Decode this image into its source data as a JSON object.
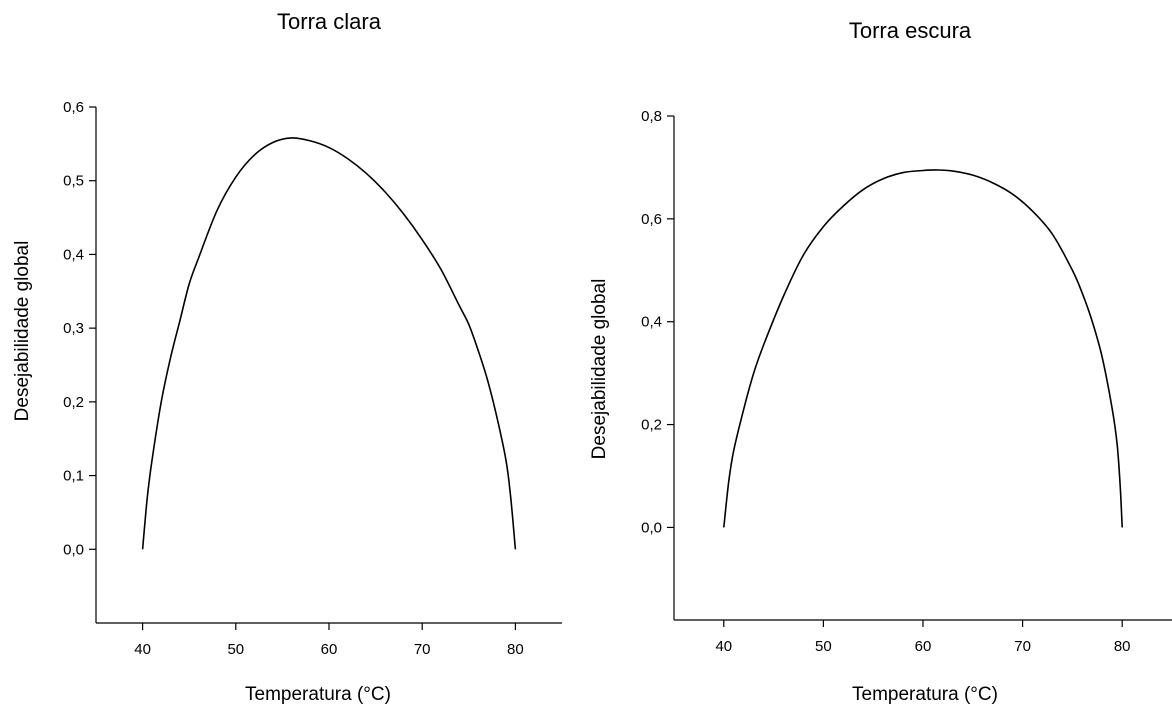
{
  "chart_data": [
    {
      "type": "line",
      "title": "Torra clara",
      "xlabel": "Temperatura (°C)",
      "ylabel": "Desejabilidade global",
      "xlim": [
        35,
        85
      ],
      "ylim": [
        -0.1,
        0.6
      ],
      "xticks": [
        40,
        50,
        60,
        70,
        80
      ],
      "xtick_labels": [
        "40",
        "50",
        "60",
        "70",
        "80"
      ],
      "yticks": [
        0.0,
        0.1,
        0.2,
        0.3,
        0.4,
        0.5,
        0.6
      ],
      "ytick_labels": [
        "0,0",
        "0,1",
        "0,2",
        "0,3",
        "0,4",
        "0,5",
        "0,6"
      ],
      "grid": false,
      "series": [
        {
          "x": [
            40,
            40.5,
            41,
            42,
            43,
            44,
            45,
            46,
            48,
            50,
            52,
            54,
            56,
            58,
            60,
            62,
            64,
            66,
            68,
            70,
            72,
            74,
            75,
            76,
            77,
            78,
            79,
            79.5,
            80
          ],
          "y": [
            0.0,
            0.07,
            0.12,
            0.2,
            0.26,
            0.31,
            0.36,
            0.395,
            0.46,
            0.505,
            0.535,
            0.552,
            0.558,
            0.554,
            0.545,
            0.53,
            0.51,
            0.485,
            0.455,
            0.42,
            0.38,
            0.33,
            0.305,
            0.27,
            0.23,
            0.18,
            0.12,
            0.07,
            0.0
          ]
        }
      ]
    },
    {
      "type": "line",
      "title": "Torra escura",
      "xlabel": "Temperatura (°C)",
      "ylabel": "Desejabilidade global",
      "xlim": [
        35,
        85
      ],
      "ylim": [
        -0.18,
        0.8
      ],
      "xticks": [
        40,
        50,
        60,
        70,
        80
      ],
      "xtick_labels": [
        "40",
        "50",
        "60",
        "70",
        "80"
      ],
      "yticks": [
        0.0,
        0.2,
        0.4,
        0.6,
        0.8
      ],
      "ytick_labels": [
        "0,0",
        "0,2",
        "0,4",
        "0,6",
        "0,8"
      ],
      "grid": false,
      "series": [
        {
          "x": [
            40,
            40.5,
            41,
            42,
            43,
            44,
            46,
            48,
            50,
            52,
            54,
            56,
            58,
            60,
            61.5,
            63,
            65,
            67,
            69,
            71,
            73,
            75,
            76,
            77,
            78,
            79,
            79.5,
            79.8,
            80
          ],
          "y": [
            0.0,
            0.09,
            0.15,
            0.23,
            0.3,
            0.355,
            0.45,
            0.53,
            0.585,
            0.625,
            0.657,
            0.678,
            0.69,
            0.694,
            0.695,
            0.693,
            0.685,
            0.67,
            0.648,
            0.615,
            0.57,
            0.5,
            0.455,
            0.4,
            0.33,
            0.23,
            0.16,
            0.08,
            0.0
          ]
        }
      ]
    }
  ]
}
